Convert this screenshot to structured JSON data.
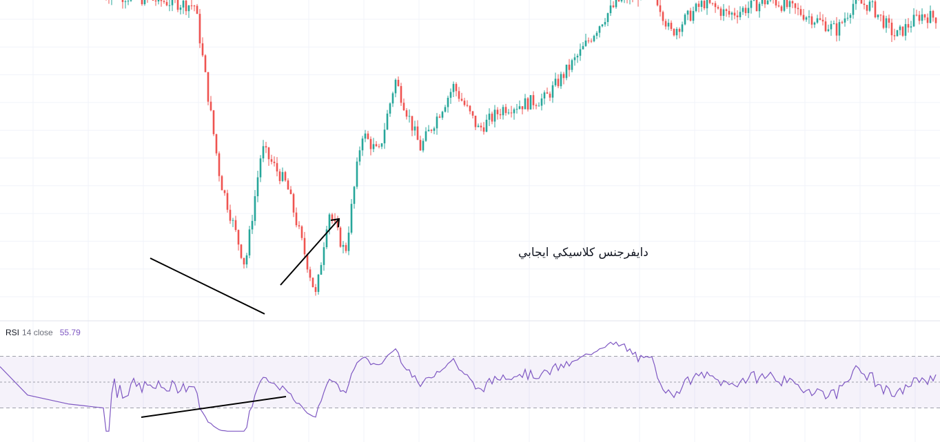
{
  "annotation_text": "دايفرجنس كلاسيكي ايجابي",
  "rsi": {
    "name": "RSI",
    "params": "14 close",
    "value": "55.79",
    "upper_band": 70,
    "middle_band": 50,
    "lower_band": 30,
    "line_color": "#7e57c2",
    "band_fill": "#7e57c2",
    "overbought_fill": "#4caf50",
    "oversold_fill": "#f23645"
  },
  "colors": {
    "up": "#26a69a",
    "down": "#ef5350",
    "grid": "#f0f3fa",
    "trendline": "#000000"
  },
  "chart_data": [
    {
      "type": "candlestick",
      "description_axis": "price (relative scale, no axis labels shown)",
      "grid": true,
      "trend": {
        "anchors_x": [
          0.0,
          0.11,
          0.14,
          0.17,
          0.19,
          0.22,
          0.255,
          0.27,
          0.29,
          0.31,
          0.33,
          0.35,
          0.38,
          0.42,
          0.45,
          0.48,
          0.5,
          0.53,
          0.57,
          0.6,
          0.62,
          0.66,
          0.68,
          0.72,
          0.75,
          0.8,
          0.85,
          0.88,
          0.9,
          0.92,
          0.95,
          0.98,
          1.0
        ],
        "anchors_y": [
          100,
          96,
          40,
          12,
          50,
          38,
          2,
          30,
          16,
          55,
          48,
          72,
          50,
          70,
          56,
          63,
          64,
          66,
          80,
          92,
          98,
          101,
          87,
          97,
          93,
          98,
          92,
          88,
          97,
          96,
          86,
          93,
          92
        ]
      }
    },
    {
      "type": "line",
      "series": [
        {
          "name": "RSI",
          "role": "oscillator"
        }
      ],
      "ylim": [
        10,
        90
      ],
      "bands": [
        30,
        50,
        70
      ],
      "current": 55.79
    }
  ],
  "annotations": {
    "price_support_line": "descending",
    "rsi_support_line": "ascending",
    "arrow": "up-right"
  }
}
